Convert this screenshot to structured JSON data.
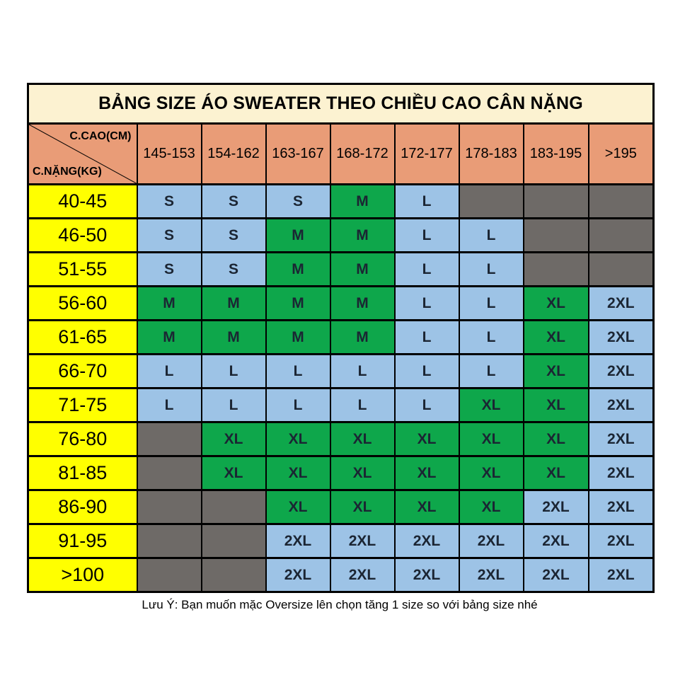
{
  "title": "BẢNG SIZE ÁO SWEATER THEO CHIỀU CAO CÂN NẶNG",
  "corner": {
    "top_label": "C.CAO(CM)",
    "bottom_label": "C.NẶNG(KG)"
  },
  "height_columns": [
    "145-153",
    "154-162",
    "163-167",
    "168-172",
    "172-177",
    "178-183",
    "183-195",
    ">195"
  ],
  "rows": [
    {
      "weight": "40-45",
      "cells": [
        {
          "size": "S",
          "bg": "blue"
        },
        {
          "size": "S",
          "bg": "blue"
        },
        {
          "size": "S",
          "bg": "blue"
        },
        {
          "size": "M",
          "bg": "green"
        },
        {
          "size": "L",
          "bg": "blue"
        },
        {
          "size": "",
          "bg": "gray"
        },
        {
          "size": "",
          "bg": "gray"
        },
        {
          "size": "",
          "bg": "gray"
        }
      ]
    },
    {
      "weight": "46-50",
      "cells": [
        {
          "size": "S",
          "bg": "blue"
        },
        {
          "size": "S",
          "bg": "blue"
        },
        {
          "size": "M",
          "bg": "green"
        },
        {
          "size": "M",
          "bg": "green"
        },
        {
          "size": "L",
          "bg": "blue"
        },
        {
          "size": "L",
          "bg": "blue"
        },
        {
          "size": "",
          "bg": "gray"
        },
        {
          "size": "",
          "bg": "gray"
        }
      ]
    },
    {
      "weight": "51-55",
      "cells": [
        {
          "size": "S",
          "bg": "blue"
        },
        {
          "size": "S",
          "bg": "blue"
        },
        {
          "size": "M",
          "bg": "green"
        },
        {
          "size": "M",
          "bg": "green"
        },
        {
          "size": "L",
          "bg": "blue"
        },
        {
          "size": "L",
          "bg": "blue"
        },
        {
          "size": "",
          "bg": "gray"
        },
        {
          "size": "",
          "bg": "gray"
        }
      ]
    },
    {
      "weight": "56-60",
      "cells": [
        {
          "size": "M",
          "bg": "green"
        },
        {
          "size": "M",
          "bg": "green"
        },
        {
          "size": "M",
          "bg": "green"
        },
        {
          "size": "M",
          "bg": "green"
        },
        {
          "size": "L",
          "bg": "blue"
        },
        {
          "size": "L",
          "bg": "blue"
        },
        {
          "size": "XL",
          "bg": "green"
        },
        {
          "size": "2XL",
          "bg": "blue"
        }
      ]
    },
    {
      "weight": "61-65",
      "cells": [
        {
          "size": "M",
          "bg": "green"
        },
        {
          "size": "M",
          "bg": "green"
        },
        {
          "size": "M",
          "bg": "green"
        },
        {
          "size": "M",
          "bg": "green"
        },
        {
          "size": "L",
          "bg": "blue"
        },
        {
          "size": "L",
          "bg": "blue"
        },
        {
          "size": "XL",
          "bg": "green"
        },
        {
          "size": "2XL",
          "bg": "blue"
        }
      ]
    },
    {
      "weight": "66-70",
      "cells": [
        {
          "size": "L",
          "bg": "blue"
        },
        {
          "size": "L",
          "bg": "blue"
        },
        {
          "size": "L",
          "bg": "blue"
        },
        {
          "size": "L",
          "bg": "blue"
        },
        {
          "size": "L",
          "bg": "blue"
        },
        {
          "size": "L",
          "bg": "blue"
        },
        {
          "size": "XL",
          "bg": "green"
        },
        {
          "size": "2XL",
          "bg": "blue"
        }
      ]
    },
    {
      "weight": "71-75",
      "cells": [
        {
          "size": "L",
          "bg": "blue"
        },
        {
          "size": "L",
          "bg": "blue"
        },
        {
          "size": "L",
          "bg": "blue"
        },
        {
          "size": "L",
          "bg": "blue"
        },
        {
          "size": "L",
          "bg": "blue"
        },
        {
          "size": "XL",
          "bg": "green"
        },
        {
          "size": "XL",
          "bg": "green"
        },
        {
          "size": "2XL",
          "bg": "blue"
        }
      ]
    },
    {
      "weight": "76-80",
      "cells": [
        {
          "size": "",
          "bg": "gray"
        },
        {
          "size": "XL",
          "bg": "green"
        },
        {
          "size": "XL",
          "bg": "green"
        },
        {
          "size": "XL",
          "bg": "green"
        },
        {
          "size": "XL",
          "bg": "green"
        },
        {
          "size": "XL",
          "bg": "green"
        },
        {
          "size": "XL",
          "bg": "green"
        },
        {
          "size": "2XL",
          "bg": "blue"
        }
      ]
    },
    {
      "weight": "81-85",
      "cells": [
        {
          "size": "",
          "bg": "gray"
        },
        {
          "size": "XL",
          "bg": "green"
        },
        {
          "size": "XL",
          "bg": "green"
        },
        {
          "size": "XL",
          "bg": "green"
        },
        {
          "size": "XL",
          "bg": "green"
        },
        {
          "size": "XL",
          "bg": "green"
        },
        {
          "size": "XL",
          "bg": "green"
        },
        {
          "size": "2XL",
          "bg": "blue"
        }
      ]
    },
    {
      "weight": "86-90",
      "cells": [
        {
          "size": "",
          "bg": "gray"
        },
        {
          "size": "",
          "bg": "gray"
        },
        {
          "size": "XL",
          "bg": "green"
        },
        {
          "size": "XL",
          "bg": "green"
        },
        {
          "size": "XL",
          "bg": "green"
        },
        {
          "size": "XL",
          "bg": "green"
        },
        {
          "size": "2XL",
          "bg": "blue"
        },
        {
          "size": "2XL",
          "bg": "blue"
        }
      ]
    },
    {
      "weight": "91-95",
      "cells": [
        {
          "size": "",
          "bg": "gray"
        },
        {
          "size": "",
          "bg": "gray"
        },
        {
          "size": "2XL",
          "bg": "blue"
        },
        {
          "size": "2XL",
          "bg": "blue"
        },
        {
          "size": "2XL",
          "bg": "blue"
        },
        {
          "size": "2XL",
          "bg": "blue"
        },
        {
          "size": "2XL",
          "bg": "blue"
        },
        {
          "size": "2XL",
          "bg": "blue"
        }
      ]
    },
    {
      "weight": ">100",
      "cells": [
        {
          "size": "",
          "bg": "gray"
        },
        {
          "size": "",
          "bg": "gray"
        },
        {
          "size": "2XL",
          "bg": "blue"
        },
        {
          "size": "2XL",
          "bg": "blue"
        },
        {
          "size": "2XL",
          "bg": "blue"
        },
        {
          "size": "2XL",
          "bg": "blue"
        },
        {
          "size": "2XL",
          "bg": "blue"
        },
        {
          "size": "2XL",
          "bg": "blue"
        }
      ]
    }
  ],
  "footer_note": "Lưu Ý: Bạn muốn mặc Oversize lên chọn tăng 1 size so với bảng size nhé",
  "colors": {
    "title_bg": "#FCF2D1",
    "header_bg": "#E99C77",
    "weight_bg": "#FFFF00",
    "size_blue": "#9DC3E6",
    "size_green": "#0EA74B",
    "empty_gray": "#6E6A67",
    "border": "#000000",
    "size_text": "#1B2533",
    "page_bg": "#FFFFFF"
  }
}
